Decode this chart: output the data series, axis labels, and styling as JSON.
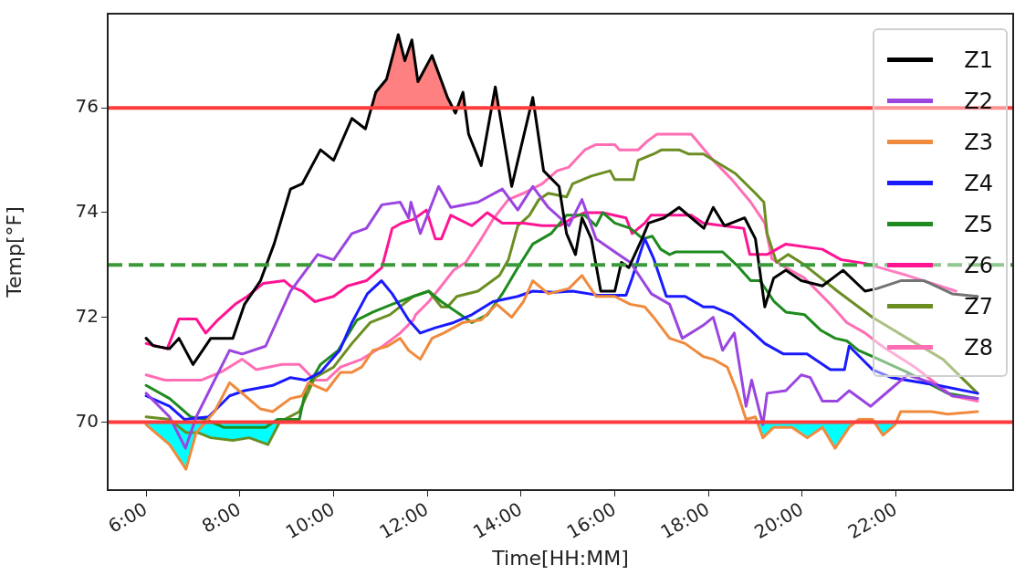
{
  "chart_data": {
    "type": "line",
    "xlabel": "Time[HH:MM]",
    "ylabel": "Temp[°F]",
    "xlim": [
      5.18,
      24.5
    ],
    "ylim": [
      68.7,
      77.8
    ],
    "xticks": [
      {
        "value": 6,
        "label": "6:00"
      },
      {
        "value": 8,
        "label": "8:00"
      },
      {
        "value": 10,
        "label": "10:00"
      },
      {
        "value": 12,
        "label": "12:00"
      },
      {
        "value": 14,
        "label": "14:00"
      },
      {
        "value": 16,
        "label": "16:00"
      },
      {
        "value": 18,
        "label": "18:00"
      },
      {
        "value": 20,
        "label": "20:00"
      },
      {
        "value": 22,
        "label": "22:00"
      }
    ],
    "yticks": [
      70,
      72,
      74,
      76
    ],
    "grid": false,
    "legend": "top right",
    "marker": "none",
    "line_style": "solid",
    "ref_lines": [
      {
        "axis": "y",
        "value": 76,
        "color": "#ff3b3b",
        "line_style": "solid"
      },
      {
        "axis": "y",
        "value": 70,
        "color": "#ff3b3b",
        "line_style": "solid"
      },
      {
        "axis": "y",
        "value": 73,
        "color": "#3a9a3a",
        "line_style": "dashed"
      }
    ],
    "series": [
      {
        "name": "Z1",
        "color": "#000000",
        "x": [
          6.0,
          6.15,
          6.5,
          6.7,
          7.0,
          7.38,
          7.85,
          8.1,
          8.44,
          8.73,
          9.08,
          9.33,
          9.72,
          10.0,
          10.39,
          10.68,
          10.9,
          11.13,
          11.38,
          11.52,
          11.67,
          11.8,
          12.1,
          12.43,
          12.6,
          12.76,
          12.88,
          13.15,
          13.45,
          13.8,
          14.25,
          14.48,
          14.81,
          14.97,
          15.16,
          15.3,
          15.5,
          15.7,
          16.0,
          16.14,
          16.3,
          16.58,
          16.72,
          17.05,
          17.37,
          17.9,
          18.1,
          18.34,
          18.77,
          19.0,
          19.2,
          19.39,
          19.65,
          19.98,
          20.43,
          20.87,
          21.34,
          21.6,
          22.1,
          22.6,
          23.2,
          23.74
        ],
        "values": [
          71.6,
          71.46,
          71.4,
          71.6,
          71.1,
          71.6,
          71.6,
          72.25,
          72.7,
          73.4,
          74.45,
          74.55,
          75.2,
          75.0,
          75.8,
          75.6,
          76.3,
          76.55,
          77.4,
          76.9,
          77.3,
          76.5,
          77.0,
          76.2,
          75.9,
          76.3,
          75.5,
          74.9,
          76.4,
          74.5,
          76.2,
          74.8,
          74.5,
          73.6,
          73.2,
          73.9,
          73.5,
          72.5,
          72.5,
          73.05,
          72.95,
          73.5,
          73.8,
          73.9,
          74.1,
          73.7,
          74.1,
          73.75,
          73.9,
          73.5,
          72.2,
          72.75,
          72.9,
          72.7,
          72.6,
          72.9,
          72.5,
          72.55,
          72.7,
          72.7,
          72.45,
          72.4
        ]
      },
      {
        "name": "Z2",
        "color": "#9b45e0",
        "x": [
          6.0,
          6.5,
          6.84,
          7.07,
          7.46,
          7.78,
          8.05,
          8.55,
          9.08,
          9.66,
          10.0,
          10.39,
          10.7,
          11.03,
          11.42,
          11.6,
          11.65,
          11.85,
          12.24,
          12.5,
          13.08,
          13.6,
          13.93,
          14.25,
          14.58,
          14.83,
          15.02,
          15.3,
          15.6,
          16.0,
          16.33,
          16.78,
          17.17,
          17.44,
          17.89,
          18.1,
          18.3,
          18.55,
          18.8,
          18.92,
          19.16,
          19.25,
          19.65,
          19.98,
          20.17,
          20.43,
          20.75,
          21.0,
          21.46,
          21.85,
          22.24,
          22.76,
          23.2,
          23.74
        ],
        "values": [
          70.55,
          70.1,
          69.5,
          70.1,
          70.8,
          71.37,
          71.3,
          71.45,
          72.5,
          73.2,
          73.1,
          73.6,
          73.7,
          74.15,
          74.2,
          73.9,
          74.2,
          73.6,
          74.5,
          74.1,
          74.2,
          74.45,
          74.05,
          74.5,
          74.1,
          73.9,
          73.75,
          74.25,
          73.5,
          73.25,
          73.05,
          72.45,
          72.25,
          71.6,
          71.85,
          72.0,
          71.37,
          71.7,
          70.3,
          70.8,
          69.95,
          70.55,
          70.6,
          70.9,
          70.85,
          70.4,
          70.4,
          70.6,
          70.3,
          70.6,
          70.9,
          70.75,
          70.5,
          70.45
        ]
      },
      {
        "name": "Z3",
        "color": "#f08a3c",
        "x": [
          6.0,
          6.5,
          6.85,
          7.07,
          7.46,
          7.78,
          8.05,
          8.44,
          8.7,
          9.08,
          9.33,
          9.46,
          9.85,
          10.15,
          10.39,
          10.6,
          10.84,
          11.15,
          11.42,
          11.6,
          11.85,
          12.1,
          12.35,
          12.76,
          13.15,
          13.48,
          13.8,
          14.05,
          14.25,
          14.58,
          15.02,
          15.3,
          15.6,
          16.0,
          16.33,
          16.64,
          16.83,
          17.17,
          17.5,
          17.89,
          18.1,
          18.4,
          18.6,
          18.8,
          19.0,
          19.16,
          19.39,
          19.78,
          20.11,
          20.43,
          20.7,
          21.0,
          21.2,
          21.5,
          21.72,
          21.98,
          22.1,
          22.76,
          23.1,
          23.74
        ],
        "values": [
          69.95,
          69.57,
          69.1,
          69.8,
          70.2,
          70.75,
          70.55,
          70.25,
          70.2,
          70.45,
          70.5,
          70.75,
          70.6,
          70.95,
          70.95,
          71.05,
          71.37,
          71.45,
          71.6,
          71.37,
          71.2,
          71.6,
          71.7,
          71.9,
          71.95,
          72.25,
          72.0,
          72.3,
          72.7,
          72.45,
          72.55,
          72.8,
          72.4,
          72.4,
          72.25,
          72.2,
          72.0,
          71.6,
          71.5,
          71.25,
          71.2,
          71.05,
          70.6,
          70.05,
          70.1,
          69.7,
          69.9,
          69.9,
          69.7,
          69.9,
          69.5,
          69.9,
          70.05,
          70.05,
          69.75,
          69.95,
          70.2,
          70.2,
          70.15,
          70.2
        ]
      },
      {
        "name": "Z4",
        "color": "#1a1aff",
        "x": [
          6.0,
          6.5,
          6.82,
          7.33,
          7.78,
          8.1,
          8.7,
          9.08,
          9.4,
          9.72,
          10.13,
          10.39,
          10.72,
          11.02,
          11.25,
          11.6,
          11.85,
          12.17,
          12.56,
          12.95,
          13.4,
          13.93,
          14.25,
          14.7,
          15.1,
          15.66,
          16.24,
          16.37,
          16.64,
          16.83,
          17.1,
          17.5,
          17.89,
          18.1,
          18.5,
          18.9,
          19.2,
          19.6,
          20.1,
          20.6,
          20.9,
          21.0,
          21.5,
          21.9,
          22.9,
          23.74
        ],
        "values": [
          70.5,
          70.3,
          70.05,
          70.1,
          70.5,
          70.6,
          70.7,
          70.85,
          70.8,
          70.95,
          71.37,
          71.9,
          72.45,
          72.7,
          72.45,
          71.95,
          71.7,
          71.8,
          71.9,
          72.05,
          72.3,
          72.4,
          72.5,
          72.48,
          72.5,
          72.42,
          72.42,
          72.75,
          73.5,
          73.12,
          72.4,
          72.4,
          72.2,
          72.2,
          72.05,
          71.75,
          71.5,
          71.3,
          71.3,
          71.0,
          71.0,
          71.45,
          71.0,
          70.85,
          70.7,
          70.55
        ]
      },
      {
        "name": "Z5",
        "color": "#1f8a1f",
        "x": [
          6.0,
          6.5,
          6.95,
          7.27,
          7.65,
          8.55,
          8.8,
          9.27,
          9.4,
          9.72,
          10.1,
          10.5,
          10.84,
          11.25,
          11.7,
          12.03,
          12.3,
          12.63,
          12.95,
          13.28,
          13.6,
          13.93,
          14.25,
          14.64,
          14.97,
          15.36,
          15.6,
          15.74,
          16.0,
          16.33,
          16.6,
          16.8,
          16.98,
          17.17,
          17.3,
          17.89,
          18.3,
          18.6,
          18.9,
          19.1,
          19.4,
          19.65,
          20.05,
          20.4,
          20.7,
          20.95,
          21.2,
          21.5,
          22.24,
          23.1,
          23.74
        ],
        "values": [
          70.7,
          70.45,
          70.1,
          70.05,
          69.9,
          69.9,
          70.05,
          70.05,
          70.6,
          71.1,
          71.37,
          71.95,
          72.1,
          72.25,
          72.4,
          72.5,
          72.3,
          72.1,
          71.9,
          72.05,
          72.45,
          72.95,
          73.4,
          73.6,
          73.95,
          73.95,
          73.75,
          74.0,
          73.8,
          73.7,
          73.5,
          73.55,
          73.3,
          73.2,
          73.25,
          73.25,
          73.25,
          73.0,
          72.7,
          72.7,
          72.3,
          72.1,
          72.05,
          71.75,
          71.6,
          71.55,
          71.37,
          71.25,
          70.95,
          70.55,
          70.45
        ]
      },
      {
        "name": "Z6",
        "color": "#ff1493",
        "x": [
          6.0,
          6.45,
          6.7,
          7.07,
          7.27,
          7.53,
          7.9,
          8.16,
          8.5,
          8.95,
          9.08,
          9.33,
          9.6,
          10.0,
          10.3,
          10.7,
          11.03,
          11.25,
          11.45,
          11.7,
          11.98,
          12.17,
          12.3,
          12.5,
          12.95,
          13.28,
          13.6,
          14.05,
          14.45,
          14.83,
          15.1,
          15.36,
          15.74,
          16.24,
          16.37,
          16.64,
          16.77,
          17.63,
          17.89,
          18.3,
          18.75,
          18.88,
          19.25,
          19.65,
          20.43,
          20.83,
          21.34,
          22.24,
          23.28
        ],
        "values": [
          71.5,
          71.4,
          71.97,
          71.97,
          71.7,
          71.95,
          72.25,
          72.4,
          72.65,
          72.7,
          72.6,
          72.5,
          72.3,
          72.4,
          72.6,
          72.7,
          72.95,
          73.7,
          73.8,
          73.87,
          74.05,
          73.5,
          73.5,
          73.95,
          73.75,
          74.0,
          73.8,
          73.8,
          73.75,
          73.75,
          73.9,
          74.0,
          74.0,
          73.9,
          73.6,
          73.8,
          73.95,
          73.95,
          73.8,
          73.75,
          73.7,
          73.2,
          73.2,
          73.4,
          73.3,
          73.1,
          73.03,
          72.8,
          72.5
        ]
      },
      {
        "name": "Z7",
        "color": "#6b8e23",
        "x": [
          6.0,
          6.5,
          6.85,
          7.1,
          7.38,
          7.85,
          8.2,
          8.6,
          8.85,
          9.27,
          9.6,
          10.0,
          10.39,
          10.78,
          11.2,
          11.7,
          12.03,
          12.3,
          12.43,
          12.63,
          13.08,
          13.54,
          13.73,
          13.93,
          14.18,
          14.38,
          14.58,
          14.97,
          15.1,
          15.5,
          15.9,
          16.0,
          16.4,
          16.5,
          16.83,
          17.0,
          17.37,
          17.57,
          17.89,
          18.2,
          18.57,
          19.0,
          19.18,
          19.25,
          19.45,
          19.7,
          20.05,
          20.75,
          21.5,
          22.24,
          23.0,
          23.74
        ],
        "values": [
          70.1,
          70.05,
          69.8,
          69.8,
          69.7,
          69.65,
          69.7,
          69.57,
          70.0,
          70.2,
          70.85,
          71.05,
          71.5,
          71.9,
          72.05,
          72.4,
          72.5,
          72.2,
          72.2,
          72.4,
          72.5,
          72.8,
          73.1,
          73.75,
          73.95,
          74.25,
          74.37,
          74.3,
          74.55,
          74.7,
          74.8,
          74.63,
          74.63,
          75.0,
          75.12,
          75.2,
          75.2,
          75.12,
          75.12,
          74.95,
          74.75,
          74.37,
          74.2,
          73.6,
          73.05,
          73.2,
          73.0,
          72.5,
          72.0,
          71.6,
          71.2,
          70.55
        ]
      },
      {
        "name": "Z8",
        "color": "#ff6eb4",
        "x": [
          6.0,
          6.4,
          7.17,
          7.63,
          8.05,
          8.35,
          8.9,
          9.27,
          9.6,
          9.85,
          10.15,
          10.6,
          11.05,
          11.42,
          11.7,
          11.75,
          12.03,
          12.3,
          12.56,
          12.82,
          13.15,
          13.4,
          13.73,
          14.05,
          14.45,
          14.77,
          15.02,
          15.36,
          15.6,
          16.0,
          16.1,
          16.5,
          16.7,
          16.9,
          17.63,
          18.1,
          18.5,
          18.9,
          19.2,
          19.35,
          19.65,
          20.05,
          20.6,
          20.95,
          21.34,
          21.7,
          22.4,
          23.2,
          23.74
        ],
        "values": [
          70.9,
          70.8,
          70.8,
          70.97,
          71.2,
          71.0,
          71.1,
          71.1,
          70.8,
          70.8,
          71.05,
          71.2,
          71.45,
          71.7,
          71.95,
          72.05,
          72.3,
          72.6,
          72.9,
          73.05,
          73.5,
          73.87,
          74.25,
          74.37,
          74.55,
          74.8,
          74.87,
          75.2,
          75.3,
          75.3,
          75.2,
          75.2,
          75.37,
          75.5,
          75.5,
          75.0,
          74.63,
          74.2,
          73.8,
          73.12,
          72.95,
          72.75,
          72.25,
          71.9,
          71.7,
          71.45,
          71.05,
          70.5,
          70.4
        ]
      }
    ]
  }
}
